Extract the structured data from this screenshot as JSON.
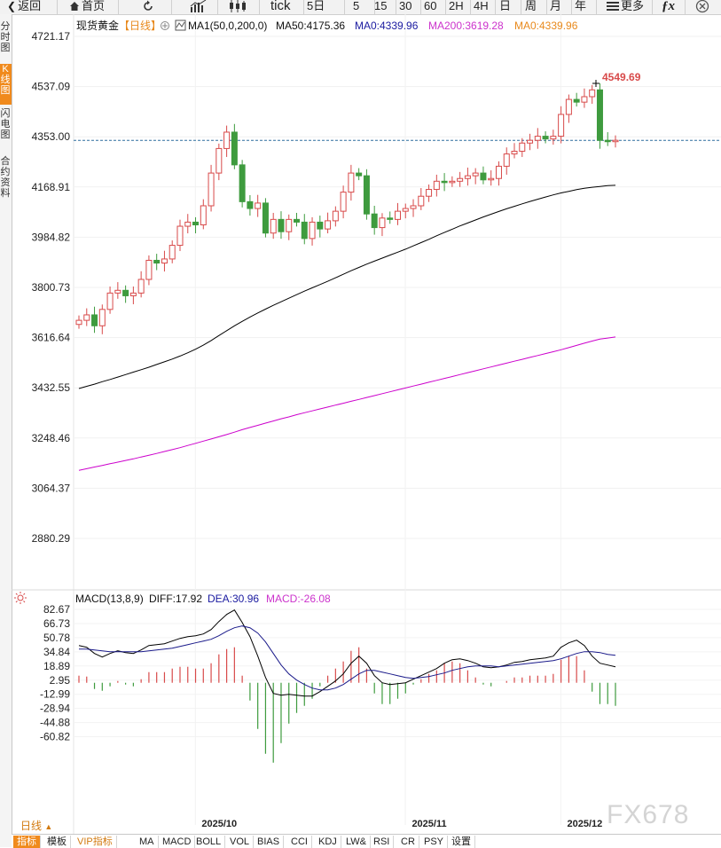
{
  "toolbar": {
    "back_label": "返回",
    "home_label": "首页",
    "tick_label": "tick",
    "periods": [
      "5日",
      "5",
      "15",
      "30",
      "60",
      "2H",
      "4H",
      "日",
      "周",
      "月",
      "年"
    ],
    "more_label": "更多"
  },
  "side_tabs": [
    "分时图",
    "K线图",
    "闪电图",
    "合约资料"
  ],
  "main_info": {
    "name": "现货黄金",
    "period_tag": "【日线】",
    "ma_label": "MA1(50,0,200,0)",
    "ma50": "MA50:4175.36",
    "ma0": "MA0:4339.96",
    "ma200": "MA200:3619.28",
    "ma0b": "MA0:4339.96"
  },
  "price_axis": [
    "4721.17",
    "4537.09",
    "4353.00",
    "4168.91",
    "3984.82",
    "3800.73",
    "3616.64",
    "3432.55",
    "3248.46",
    "3064.37",
    "2880.29"
  ],
  "high_label": "4549.69",
  "macd_info": {
    "label": "MACD(13,8,9)",
    "diff": "DIFF:17.92",
    "dea": "DEA:30.96",
    "macd": "MACD:-26.08"
  },
  "macd_axis": [
    "82.67",
    "66.73",
    "50.78",
    "34.84",
    "18.89",
    "2.95",
    "-12.99",
    "-28.94",
    "-44.88",
    "-60.82"
  ],
  "months": [
    "2025/10",
    "2025/11",
    "2025/12"
  ],
  "day_button": "日线",
  "bottom_tabs": [
    "指标",
    "模板",
    "VIP指标",
    "MA",
    "MACD",
    "BOLL",
    "VOL",
    "BIAS",
    "CCI",
    "KDJ",
    "LW&",
    "RSI",
    "CR",
    "PSY",
    "设置"
  ],
  "watermark": "FX678",
  "colors": {
    "up": "#d84a4a",
    "down": "#3e9b3e",
    "ma50": "#000000",
    "ma200": "#cc00cc",
    "dea_text": "#1a1aa0",
    "accent": "#f08a1c"
  },
  "chart_data": {
    "type": "candlestick",
    "ohlc_close": [
      3680,
      3700,
      3660,
      3720,
      3780,
      3790,
      3770,
      3780,
      3830,
      3900,
      3890,
      3905,
      3955,
      4025,
      4040,
      4030,
      4100,
      4220,
      4310,
      4370,
      4250,
      4115,
      4090,
      4110,
      4000,
      4050,
      4005,
      4050,
      4040,
      3980,
      4040,
      4015,
      4045,
      4080,
      4150,
      4220,
      4210,
      4070,
      4020,
      4055,
      4050,
      4080,
      4090,
      4100,
      4135,
      4160,
      4190,
      4185,
      4190,
      4200,
      4210,
      4220,
      4195,
      4200,
      4245,
      4290,
      4300,
      4330,
      4340,
      4355,
      4345,
      4355,
      4435,
      4490,
      4480,
      4500,
      4525,
      4340,
      4335,
      4340
    ],
    "ma50": [
      3430,
      3438,
      3446,
      3455,
      3463,
      3472,
      3481,
      3490,
      3499,
      3508,
      3518,
      3528,
      3538,
      3549,
      3561,
      3574,
      3589,
      3606,
      3624,
      3642,
      3660,
      3676,
      3692,
      3707,
      3721,
      3735,
      3748,
      3761,
      3774,
      3787,
      3799,
      3811,
      3823,
      3836,
      3849,
      3862,
      3874,
      3886,
      3897,
      3908,
      3919,
      3930,
      3941,
      3953,
      3965,
      3977,
      3990,
      4002,
      4014,
      4026,
      4037,
      4048,
      4059,
      4069,
      4079,
      4089,
      4098,
      4107,
      4116,
      4124,
      4132,
      4140,
      4147,
      4153,
      4159,
      4164,
      4168,
      4171,
      4174,
      4175
    ],
    "ma200": [
      3130,
      3136,
      3142,
      3148,
      3154,
      3160,
      3166,
      3172,
      3179,
      3185,
      3192,
      3199,
      3206,
      3213,
      3221,
      3229,
      3237,
      3245,
      3253,
      3261,
      3270,
      3279,
      3287,
      3295,
      3303,
      3311,
      3319,
      3326,
      3334,
      3341,
      3348,
      3355,
      3362,
      3369,
      3376,
      3383,
      3390,
      3397,
      3404,
      3411,
      3418,
      3425,
      3432,
      3439,
      3446,
      3453,
      3460,
      3467,
      3474,
      3481,
      3488,
      3495,
      3502,
      3509,
      3516,
      3523,
      3530,
      3537,
      3544,
      3551,
      3558,
      3565,
      3572,
      3580,
      3588,
      3596,
      3604,
      3611,
      3615,
      3619
    ],
    "diff": [
      42,
      40,
      33,
      29,
      33,
      36,
      34,
      33,
      37,
      42,
      43,
      44,
      47,
      50,
      52,
      53,
      55,
      60,
      69,
      77,
      82,
      68,
      52,
      30,
      6,
      -12,
      -14,
      -13,
      -14,
      -15,
      -15,
      -10,
      -4,
      2,
      10,
      22,
      30,
      22,
      8,
      0,
      -2,
      -1,
      0,
      4,
      8,
      12,
      16,
      22,
      26,
      27,
      25,
      22,
      18,
      17,
      18,
      20,
      23,
      24,
      26,
      27,
      28,
      30,
      40,
      45,
      48,
      42,
      30,
      22,
      20,
      18
    ],
    "dea": [
      38,
      38,
      37,
      36,
      35,
      35,
      35,
      35,
      35,
      36,
      37,
      38,
      39,
      41,
      43,
      45,
      47,
      49,
      53,
      58,
      62,
      64,
      62,
      56,
      46,
      33,
      20,
      10,
      3,
      -2,
      -6,
      -8,
      -8,
      -6,
      -2,
      4,
      10,
      14,
      14,
      12,
      10,
      8,
      6,
      5,
      6,
      7,
      9,
      11,
      14,
      16,
      18,
      19,
      19,
      19,
      18,
      19,
      20,
      21,
      22,
      23,
      24,
      25,
      27,
      30,
      33,
      35,
      35,
      34,
      32,
      31
    ],
    "macd": [
      8,
      7,
      -7,
      -9,
      -4,
      2,
      -2,
      -4,
      4,
      12,
      12,
      12,
      16,
      18,
      18,
      16,
      16,
      22,
      32,
      38,
      40,
      8,
      -20,
      -52,
      -80,
      -90,
      -68,
      -46,
      -34,
      -26,
      -18,
      -4,
      8,
      16,
      24,
      36,
      40,
      16,
      -12,
      -24,
      -24,
      -18,
      -12,
      -2,
      4,
      10,
      14,
      22,
      24,
      22,
      14,
      6,
      -2,
      -4,
      0,
      2,
      6,
      6,
      8,
      8,
      8,
      10,
      26,
      30,
      30,
      14,
      -10,
      -24,
      -24,
      -26
    ]
  }
}
